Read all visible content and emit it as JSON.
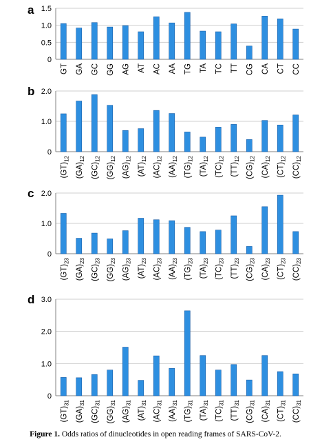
{
  "caption": {
    "label": "Figure 1.",
    "text": "Odds ratios of dinucleotides in open reading frames of SARS-CoV-2."
  },
  "colors": {
    "bar_fill": "#2e8fe0",
    "bar_stroke": "#1a5fa8",
    "grid": "#cfcfcf",
    "axis": "#808080"
  },
  "chart_data": [
    {
      "panel": "a",
      "type": "bar",
      "categories": [
        "GT",
        "GA",
        "GC",
        "GG",
        "AG",
        "AT",
        "AC",
        "AA",
        "TG",
        "TA",
        "TC",
        "TT",
        "CG",
        "CA",
        "CT",
        "CC"
      ],
      "subscript": "",
      "values": [
        1.05,
        0.92,
        1.08,
        0.95,
        0.99,
        0.81,
        1.25,
        1.07,
        1.38,
        0.83,
        0.81,
        1.04,
        0.39,
        1.27,
        1.19,
        0.89
      ],
      "ylim": [
        0,
        1.5
      ],
      "yticks": [
        "0",
        "0.5",
        "1.0",
        "1.5"
      ],
      "ytick_values": [
        0,
        0.5,
        1.0,
        1.5
      ],
      "grid": true
    },
    {
      "panel": "b",
      "type": "bar",
      "categories": [
        "(GT)",
        "(GA)",
        "(GC)",
        "(GG)",
        "(AG)",
        "(AT)",
        "(AC)",
        "(AA)",
        "(TG)",
        "(TA)",
        "(TC)",
        "(TT)",
        "(CG)",
        "(CA)",
        "(CT)",
        "(CC)"
      ],
      "subscript": "12",
      "values": [
        1.25,
        1.67,
        1.88,
        1.53,
        0.7,
        0.76,
        1.36,
        1.26,
        0.65,
        0.48,
        0.81,
        0.9,
        0.4,
        1.03,
        0.88,
        1.21
      ],
      "ylim": [
        0,
        2.0
      ],
      "yticks": [
        "0",
        "1.0",
        "2.0"
      ],
      "ytick_values": [
        0,
        1.0,
        2.0
      ],
      "grid": true
    },
    {
      "panel": "c",
      "type": "bar",
      "categories": [
        "(GT)",
        "(GA)",
        "(GC)",
        "(GG)",
        "(AG)",
        "(AT)",
        "(AC)",
        "(AA)",
        "(TG)",
        "(TA)",
        "(TC)",
        "(TT)",
        "(CG)",
        "(CA)",
        "(CT)",
        "(CC)"
      ],
      "subscript": "23",
      "values": [
        1.33,
        0.51,
        0.68,
        0.49,
        0.76,
        1.17,
        1.12,
        1.09,
        0.87,
        0.73,
        0.78,
        1.25,
        0.24,
        1.55,
        1.93,
        0.73
      ],
      "ylim": [
        0,
        2.0
      ],
      "yticks": [
        "0",
        "1.0",
        "2.0"
      ],
      "ytick_values": [
        0,
        1.0,
        2.0
      ],
      "grid": true
    },
    {
      "panel": "d",
      "type": "bar",
      "categories": [
        "(GT)",
        "(GA)",
        "(GC)",
        "(GG)",
        "(AG)",
        "(AT)",
        "(AC)",
        "(AA)",
        "(TG)",
        "(TA)",
        "(TC)",
        "(TT)",
        "(CG)",
        "(CA)",
        "(CT)",
        "(CC)"
      ],
      "subscript": "31",
      "values": [
        0.57,
        0.56,
        0.66,
        0.8,
        1.51,
        0.48,
        1.24,
        0.85,
        2.64,
        1.25,
        0.8,
        0.97,
        0.49,
        1.25,
        0.75,
        0.68
      ],
      "ylim": [
        0,
        3.0
      ],
      "yticks": [
        "0",
        "1.0",
        "2.0",
        "3.0"
      ],
      "ytick_values": [
        0,
        1.0,
        2.0,
        3.0
      ],
      "grid": true
    }
  ]
}
